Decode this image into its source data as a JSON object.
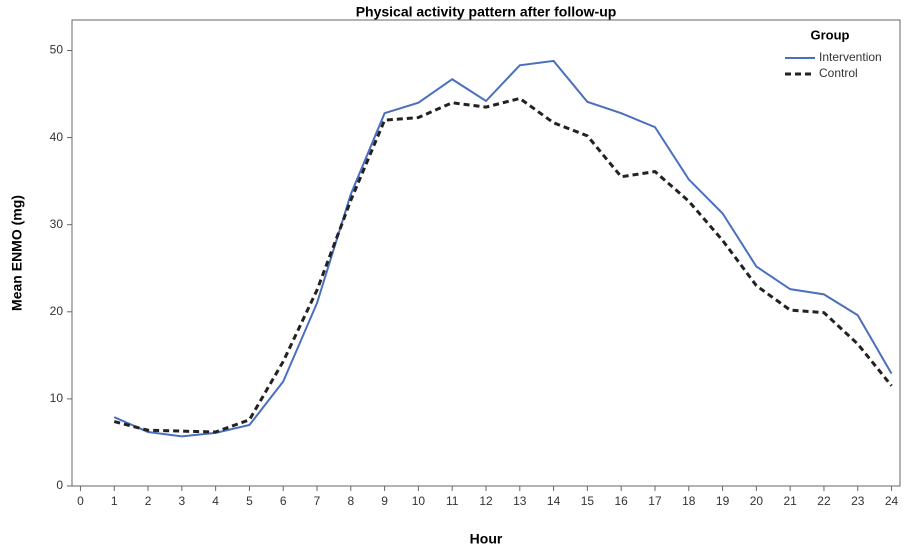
{
  "chart_data": {
    "type": "line",
    "title": "Physical activity pattern after follow-up",
    "x_label": "Hour",
    "y_label": "Mean ENMO (mg)",
    "x": [
      1,
      2,
      3,
      4,
      5,
      6,
      7,
      8,
      9,
      10,
      11,
      12,
      13,
      14,
      15,
      16,
      17,
      18,
      19,
      20,
      21,
      22,
      23,
      24
    ],
    "series": [
      {
        "name": "Intervention",
        "color": "#4a6fbf",
        "dashed": false,
        "values": [
          7.9,
          6.2,
          5.7,
          6.1,
          7.0,
          12.0,
          21.0,
          33.5,
          42.8,
          44.0,
          46.7,
          44.2,
          48.3,
          48.8,
          44.1,
          42.8,
          41.2,
          35.2,
          31.3,
          25.2,
          22.6,
          22.0,
          19.6,
          12.9
        ]
      },
      {
        "name": "Control",
        "color": "#222222",
        "dashed": true,
        "values": [
          7.4,
          6.4,
          6.3,
          6.2,
          7.6,
          14.3,
          22.5,
          32.8,
          42.0,
          42.3,
          44.0,
          43.5,
          44.5,
          41.7,
          40.2,
          35.5,
          36.1,
          32.7,
          28.2,
          23.0,
          20.2,
          19.9,
          16.3,
          11.5
        ]
      }
    ],
    "legend_title": "Group",
    "legend": "top-right",
    "xlim": [
      -0.25,
      24.25
    ],
    "xticks": [
      0,
      1,
      2,
      3,
      4,
      5,
      6,
      7,
      8,
      9,
      10,
      11,
      12,
      13,
      14,
      15,
      16,
      17,
      18,
      19,
      20,
      21,
      22,
      23,
      24
    ],
    "ylim": [
      0,
      53.5
    ],
    "yticks": [
      0,
      10,
      20,
      30,
      40,
      50
    ],
    "grid": false
  }
}
